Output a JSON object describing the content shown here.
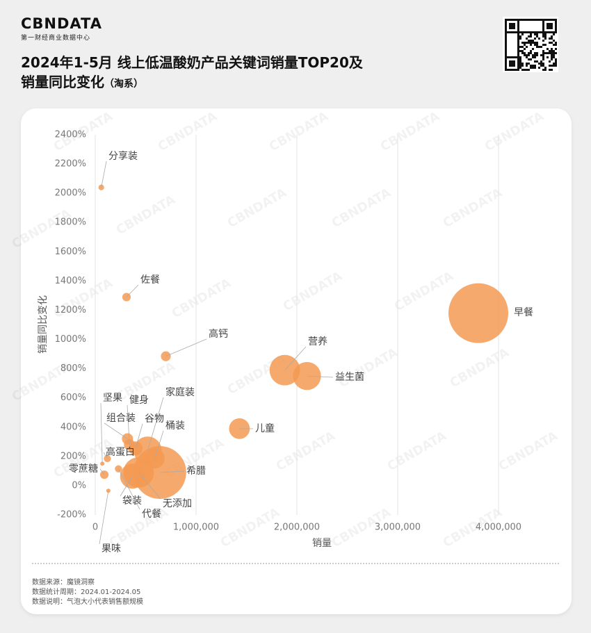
{
  "header": {
    "logo": "CBNDATA",
    "logo_sub": "第一财经商业数据中心",
    "title_line1": "2024年1-5月 线上低温酸奶产品关键词销量TOP20及",
    "title_line2": "销量同比变化",
    "title_note": "（淘系）"
  },
  "watermark": "CBNDATA",
  "chart_data": {
    "type": "bubble",
    "xlabel": "销量",
    "ylabel": "销量同比变化",
    "labels": [
      "早餐",
      "营养",
      "益生菌",
      "儿童",
      "高钙",
      "佐餐",
      "分享装",
      "希腊",
      "家庭装",
      "桶装",
      "谷物",
      "健身",
      "坚果",
      "组合装",
      "高蛋白",
      "零蔗糖",
      "袋装",
      "无添加",
      "代餐",
      "果味"
    ],
    "x": [
      3800000,
      1880000,
      2100000,
      1430000,
      700000,
      310000,
      60000,
      640000,
      520000,
      590000,
      400000,
      340000,
      70000,
      320000,
      120000,
      90000,
      370000,
      430000,
      230000,
      130000
    ],
    "values": [
      1180,
      790,
      750,
      390,
      885,
      1290,
      2040,
      90,
      240,
      185,
      255,
      280,
      150,
      320,
      185,
      75,
      65,
      90,
      115,
      -35
    ],
    "sizes": [
      100,
      26,
      22,
      12,
      2.7,
      2,
      0.9,
      78,
      22,
      11,
      5.4,
      3.5,
      0.5,
      3.5,
      1.4,
      2,
      17.5,
      26,
      1.4,
      0.5
    ],
    "color": "#f39a52",
    "xlim": [
      0,
      4500000
    ],
    "xticks": [
      0,
      {
        "value": 1000000,
        "label": "1,000,000"
      },
      {
        "value": 2000000,
        "label": "2,000,000"
      },
      {
        "value": 3000000,
        "label": "3,000,000"
      },
      {
        "value": 4000000,
        "label": "4,000,000"
      }
    ],
    "ylim": [
      -200,
      2400
    ],
    "yticks": [
      {
        "value": -200,
        "label": "-200%"
      },
      {
        "value": 0,
        "label": "0%"
      },
      {
        "value": 200,
        "label": "200%"
      },
      {
        "value": 400,
        "label": "400%"
      },
      {
        "value": 600,
        "label": "600%"
      },
      {
        "value": 800,
        "label": "800%"
      },
      {
        "value": 1000,
        "label": "1000%"
      },
      {
        "value": 1200,
        "label": "1200%"
      },
      {
        "value": 1400,
        "label": "1400%"
      },
      {
        "value": 1600,
        "label": "1600%"
      },
      {
        "value": 1800,
        "label": "1800%"
      },
      {
        "value": 2000,
        "label": "2000%"
      },
      {
        "value": 2200,
        "label": "2200%"
      },
      {
        "value": 2400,
        "label": "2400%"
      }
    ],
    "grid": "x"
  },
  "footer": {
    "source": "数据来源：魔镜洞察",
    "period": "数据统计周期：2024.01-2024.05",
    "note": "数据说明：气泡大小代表销售额规模"
  }
}
